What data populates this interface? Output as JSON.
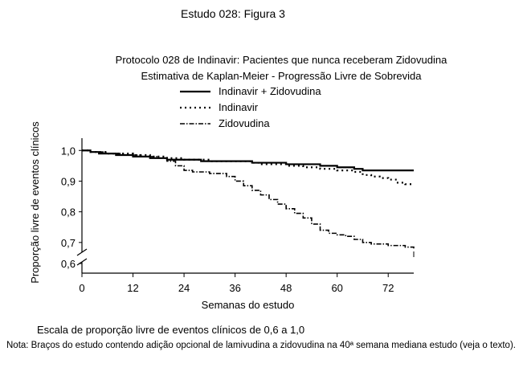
{
  "figure_title": "Estudo 028: Figura 3",
  "caption": "Escala de proporção livre de eventos clínicos de 0,6 a 1,0",
  "note": "Nota: Braços do estudo contendo adição opcional de lamivudina a zidovudina na 40ª semana mediana estudo (veja o texto).",
  "chart_data": {
    "type": "line",
    "title": "Protocolo 028 de Indinavir: Pacientes que nunca receberam Zidovudina",
    "subtitle": "Estimativa de Kaplan-Meier - Progressão Livre de Sobrevida",
    "xlabel": "Semanas do estudo",
    "ylabel": "Proporção livre de eventos clínicos",
    "xlim": [
      0,
      78
    ],
    "ylim": [
      0.6,
      1.04
    ],
    "x_ticks": [
      0,
      12,
      24,
      36,
      48,
      60,
      72
    ],
    "x_tick_labels": [
      "0",
      "12",
      "24",
      "36",
      "48",
      "60",
      "72"
    ],
    "y_ticks": [
      0.6,
      0.7,
      0.8,
      0.9,
      1.0
    ],
    "y_tick_labels": [
      "0,6",
      "0,7",
      "0,8",
      "0,9",
      "1,0"
    ],
    "axis_break": true,
    "legend_position": "top",
    "step": true,
    "series": [
      {
        "name": "Indinavir + Zidovudina",
        "style": "solid",
        "x": [
          0,
          2,
          4,
          8,
          12,
          16,
          20,
          28,
          40,
          48,
          56,
          60,
          64,
          66,
          70,
          78
        ],
        "y": [
          1.0,
          0.995,
          0.99,
          0.985,
          0.98,
          0.975,
          0.97,
          0.965,
          0.96,
          0.955,
          0.95,
          0.945,
          0.94,
          0.935,
          0.935,
          0.935
        ]
      },
      {
        "name": "Indinavir",
        "style": "dotted",
        "x": [
          0,
          2,
          6,
          12,
          16,
          20,
          24,
          30,
          36,
          40,
          42,
          48,
          52,
          56,
          60,
          64,
          66,
          68,
          70,
          72,
          74,
          76,
          78
        ],
        "y": [
          1.0,
          0.995,
          0.99,
          0.985,
          0.98,
          0.975,
          0.97,
          0.965,
          0.965,
          0.96,
          0.955,
          0.95,
          0.945,
          0.94,
          0.935,
          0.93,
          0.92,
          0.915,
          0.91,
          0.905,
          0.895,
          0.89,
          0.89
        ]
      },
      {
        "name": "Zidovudina",
        "style": "dashdot",
        "x": [
          0,
          2,
          6,
          10,
          14,
          18,
          20,
          22,
          24,
          26,
          30,
          34,
          36,
          38,
          40,
          42,
          44,
          46,
          48,
          50,
          52,
          54,
          56,
          58,
          60,
          62,
          64,
          66,
          68,
          70,
          72,
          74,
          76,
          78
        ],
        "y": [
          1.0,
          0.995,
          0.99,
          0.985,
          0.98,
          0.975,
          0.965,
          0.95,
          0.935,
          0.93,
          0.925,
          0.915,
          0.9,
          0.885,
          0.87,
          0.855,
          0.84,
          0.825,
          0.81,
          0.795,
          0.78,
          0.76,
          0.74,
          0.73,
          0.725,
          0.72,
          0.71,
          0.7,
          0.695,
          0.695,
          0.69,
          0.69,
          0.685,
          0.68
        ]
      }
    ]
  }
}
